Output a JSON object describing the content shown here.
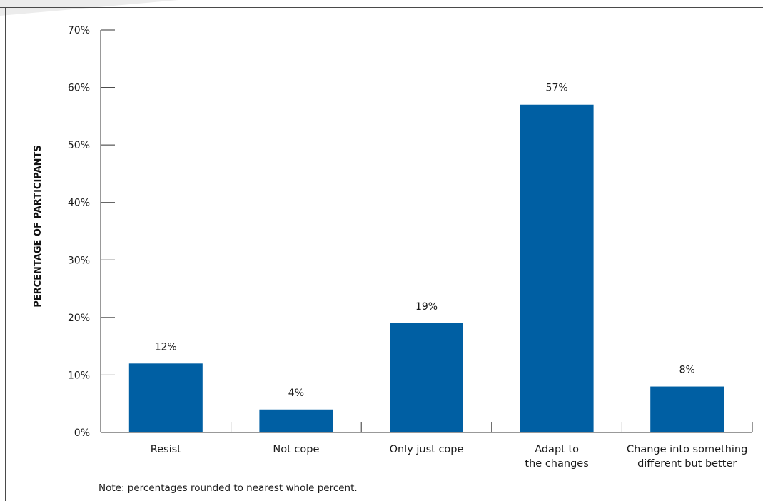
{
  "chart_data": {
    "type": "bar",
    "ylabel": "PERCENTAGE OF PARTICIPANTS",
    "xlabel": "",
    "ylim": [
      0,
      70
    ],
    "yticks": [
      "0%",
      "10%",
      "20%",
      "30%",
      "40%",
      "50%",
      "60%",
      "70%"
    ],
    "categories": [
      [
        "Resist"
      ],
      [
        "Not cope"
      ],
      [
        "Only just cope"
      ],
      [
        "Adapt to",
        "the changes"
      ],
      [
        "Change into something",
        "different but better"
      ]
    ],
    "values": [
      12,
      4,
      19,
      57,
      8
    ],
    "value_labels": [
      "12%",
      "4%",
      "19%",
      "57%",
      "8%"
    ],
    "bar_color": "#005fa3",
    "grid": false,
    "note": "Note: percentages rounded to nearest whole percent."
  }
}
